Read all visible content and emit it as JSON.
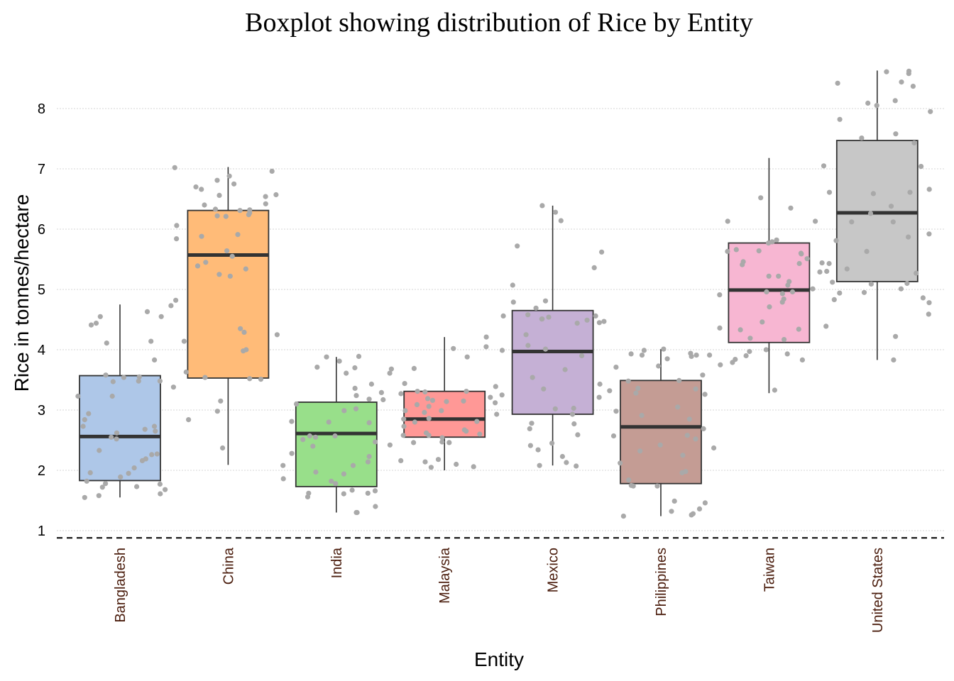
{
  "chart_data": {
    "type": "boxplot",
    "title": "Boxplot showing distribution of Rice by Entity",
    "xlabel": "Entity",
    "ylabel": "Rice in tonnes/hectare",
    "ylim": [
      0.9,
      8.75
    ],
    "yticks": [
      1,
      2,
      3,
      4,
      5,
      6,
      7,
      8
    ],
    "reference_line": 0.88,
    "grid": "horizontal dotted",
    "categories": [
      "Bangladesh",
      "China",
      "India",
      "Malaysia",
      "Mexico",
      "Philippines",
      "Taiwan",
      "United States"
    ],
    "boxes": [
      {
        "name": "Bangladesh",
        "whisker_low": 1.55,
        "q1": 1.83,
        "median": 2.56,
        "q3": 3.57,
        "whisker_high": 4.75,
        "color": "#aec7e8"
      },
      {
        "name": "China",
        "whisker_low": 2.09,
        "q1": 3.53,
        "median": 5.57,
        "q3": 6.31,
        "whisker_high": 7.03,
        "color": "#ffbb78"
      },
      {
        "name": "India",
        "whisker_low": 1.3,
        "q1": 1.73,
        "median": 2.61,
        "q3": 3.13,
        "whisker_high": 3.88,
        "color": "#98df8a"
      },
      {
        "name": "Malaysia",
        "whisker_low": 2.0,
        "q1": 2.55,
        "median": 2.85,
        "q3": 3.31,
        "whisker_high": 4.21,
        "color": "#ff9896"
      },
      {
        "name": "Mexico",
        "whisker_low": 2.08,
        "q1": 2.93,
        "median": 3.97,
        "q3": 4.65,
        "whisker_high": 6.39,
        "color": "#c5b0d5"
      },
      {
        "name": "Philippines",
        "whisker_low": 1.24,
        "q1": 1.78,
        "median": 2.72,
        "q3": 3.49,
        "whisker_high": 4.01,
        "color": "#c49c94"
      },
      {
        "name": "Taiwan",
        "whisker_low": 3.28,
        "q1": 4.12,
        "median": 4.99,
        "q3": 5.77,
        "whisker_high": 7.18,
        "color": "#f7b6d2"
      },
      {
        "name": "United States",
        "whisker_low": 3.83,
        "q1": 5.13,
        "median": 6.27,
        "q3": 7.47,
        "whisker_high": 8.63,
        "color": "#c7c7c7"
      }
    ],
    "jitter_points": [
      [
        1.73,
        1.58,
        2.04,
        3.38,
        3.55,
        3.48,
        2.84,
        4.55,
        2.16,
        2.65,
        2.19,
        1.72,
        2.26,
        1.82,
        1.95,
        4.41,
        2.94,
        4.14,
        1.77,
        2.27,
        3.23,
        2.62,
        2.68,
        1.78,
        4.44,
        3.58,
        1.68,
        3.48,
        2.55,
        3.23,
        3.83,
        1.55,
        2.73,
        4.55,
        4.11,
        1.89,
        4.73,
        2.52,
        4.63,
        1.96,
        3.47,
        1.61,
        2.73,
        2.33,
        3.54
      ],
      [
        6.54,
        6.32,
        3.63,
        5.91,
        4.14,
        6.24,
        6.22,
        3.52,
        5.88,
        6.33,
        2.98,
        6.56,
        6.57,
        3.15,
        6.06,
        6.66,
        2.84,
        4.0,
        7.02,
        3.54,
        6.4,
        5.25,
        5.39,
        3.51,
        6.21,
        5.55,
        6.42,
        4.35,
        6.27,
        5.84,
        6.75,
        2.37,
        6.88,
        5.34,
        5.45,
        5.64,
        4.25,
        6.7,
        5.22,
        6.96,
        6.31,
        4.82,
        3.98,
        4.29,
        6.81
      ],
      [
        2.23,
        1.3,
        2.4,
        1.62,
        3.61,
        1.78,
        2.51,
        1.61,
        3.36,
        1.4,
        2.99,
        1.3,
        2.81,
        3.17,
        2.28,
        1.62,
        1.82,
        3.18,
        1.97,
        2.47,
        1.56,
        2.79,
        3.88,
        2.8,
        1.86,
        3.71,
        3.89,
        3.43,
        2.14,
        2.42,
        3.61,
        1.66,
        2.55,
        2.08,
        2.57,
        3.81,
        1.67,
        3.24,
        3.7,
        2.57,
        2.08,
        3.29,
        3.02,
        3.1,
        1.94
      ],
      [
        2.46,
        3.15,
        2.18,
        2.14,
        2.67,
        3.06,
        2.05,
        3.09,
        2.62,
        2.58,
        2.46,
        3.12,
        2.65,
        3.14,
        2.6,
        2.81,
        3.3,
        2.47,
        2.54,
        2.99,
        4.21,
        3.19,
        3.68,
        2.1,
        3.16,
        3.27,
        3.44,
        2.85,
        2.73,
        2.06,
        3.88,
        3.31,
        2.58,
        3.69,
        2.99,
        3.21,
        2.96,
        2.16,
        4.05,
        2.86,
        2.93,
        2.8,
        3.31,
        4.02,
        3.39
      ],
      [
        4.25,
        2.59,
        2.78,
        4.49,
        2.69,
        3.02,
        4.44,
        6.28,
        3.03,
        2.93,
        4.07,
        4.79,
        3.9,
        3.25,
        5.07,
        2.45,
        4.54,
        2.34,
        2.77,
        2.13,
        6.14,
        4.69,
        4.01,
        4.81,
        2.23,
        3.54,
        4.45,
        3.21,
        3.67,
        4.51,
        5.36,
        4.58,
        4.56,
        6.39,
        4.51,
        3.43,
        4.47,
        3.99,
        3.35,
        2.08,
        5.72,
        4.56,
        2.41,
        5.62,
        2.07
      ],
      [
        2.37,
        3.89,
        1.74,
        3.49,
        2.69,
        2.32,
        1.26,
        1.32,
        1.49,
        3.85,
        2.98,
        1.46,
        2.58,
        3.32,
        3.05,
        3.36,
        2.52,
        1.98,
        3.91,
        4.01,
        3.58,
        1.84,
        2.12,
        3.93,
        3.26,
        1.28,
        3.28,
        2.91,
        1.36,
        3.94,
        1.96,
        2.25,
        3.48,
        3.91,
        3.35,
        2.85,
        1.75,
        1.24,
        3.71,
        1.74,
        3.99,
        3.73,
        2.42,
        2.57,
        3.91
      ],
      [
        4.93,
        5.01,
        3.84,
        4.91,
        5.41,
        5.43,
        5.22,
        4.84,
        5.82,
        5.63,
        3.83,
        4.46,
        4.17,
        4.79,
        3.97,
        6.13,
        5.22,
        3.33,
        4.34,
        6.52,
        4.36,
        5.44,
        5.6,
        5.59,
        4.33,
        5.66,
        3.93,
        6.13,
        5.64,
        4.0,
        5.29,
        5.07,
        4.96,
        5.13,
        5.79,
        4.71,
        6.35,
        4.96,
        3.9,
        5.46,
        3.75,
        3.79,
        5.51,
        5.77,
        4.19
      ],
      [
        7.05,
        4.83,
        5.92,
        6.61,
        8.61,
        4.59,
        8.58,
        5.01,
        8.37,
        6.66,
        6.12,
        4.22,
        8.42,
        8.62,
        7.51,
        8.13,
        8.05,
        7.04,
        6.59,
        5.3,
        7.58,
        5.81,
        7.82,
        7.95,
        5.63,
        5.09,
        5.43,
        4.86,
        6.26,
        6.38,
        4.78,
        5.87,
        5.1,
        4.95,
        5.34,
        8.44,
        6.61,
        4.39,
        7.43,
        8.09,
        5.27,
        3.83,
        6.12,
        4.94,
        5.12
      ]
    ]
  }
}
